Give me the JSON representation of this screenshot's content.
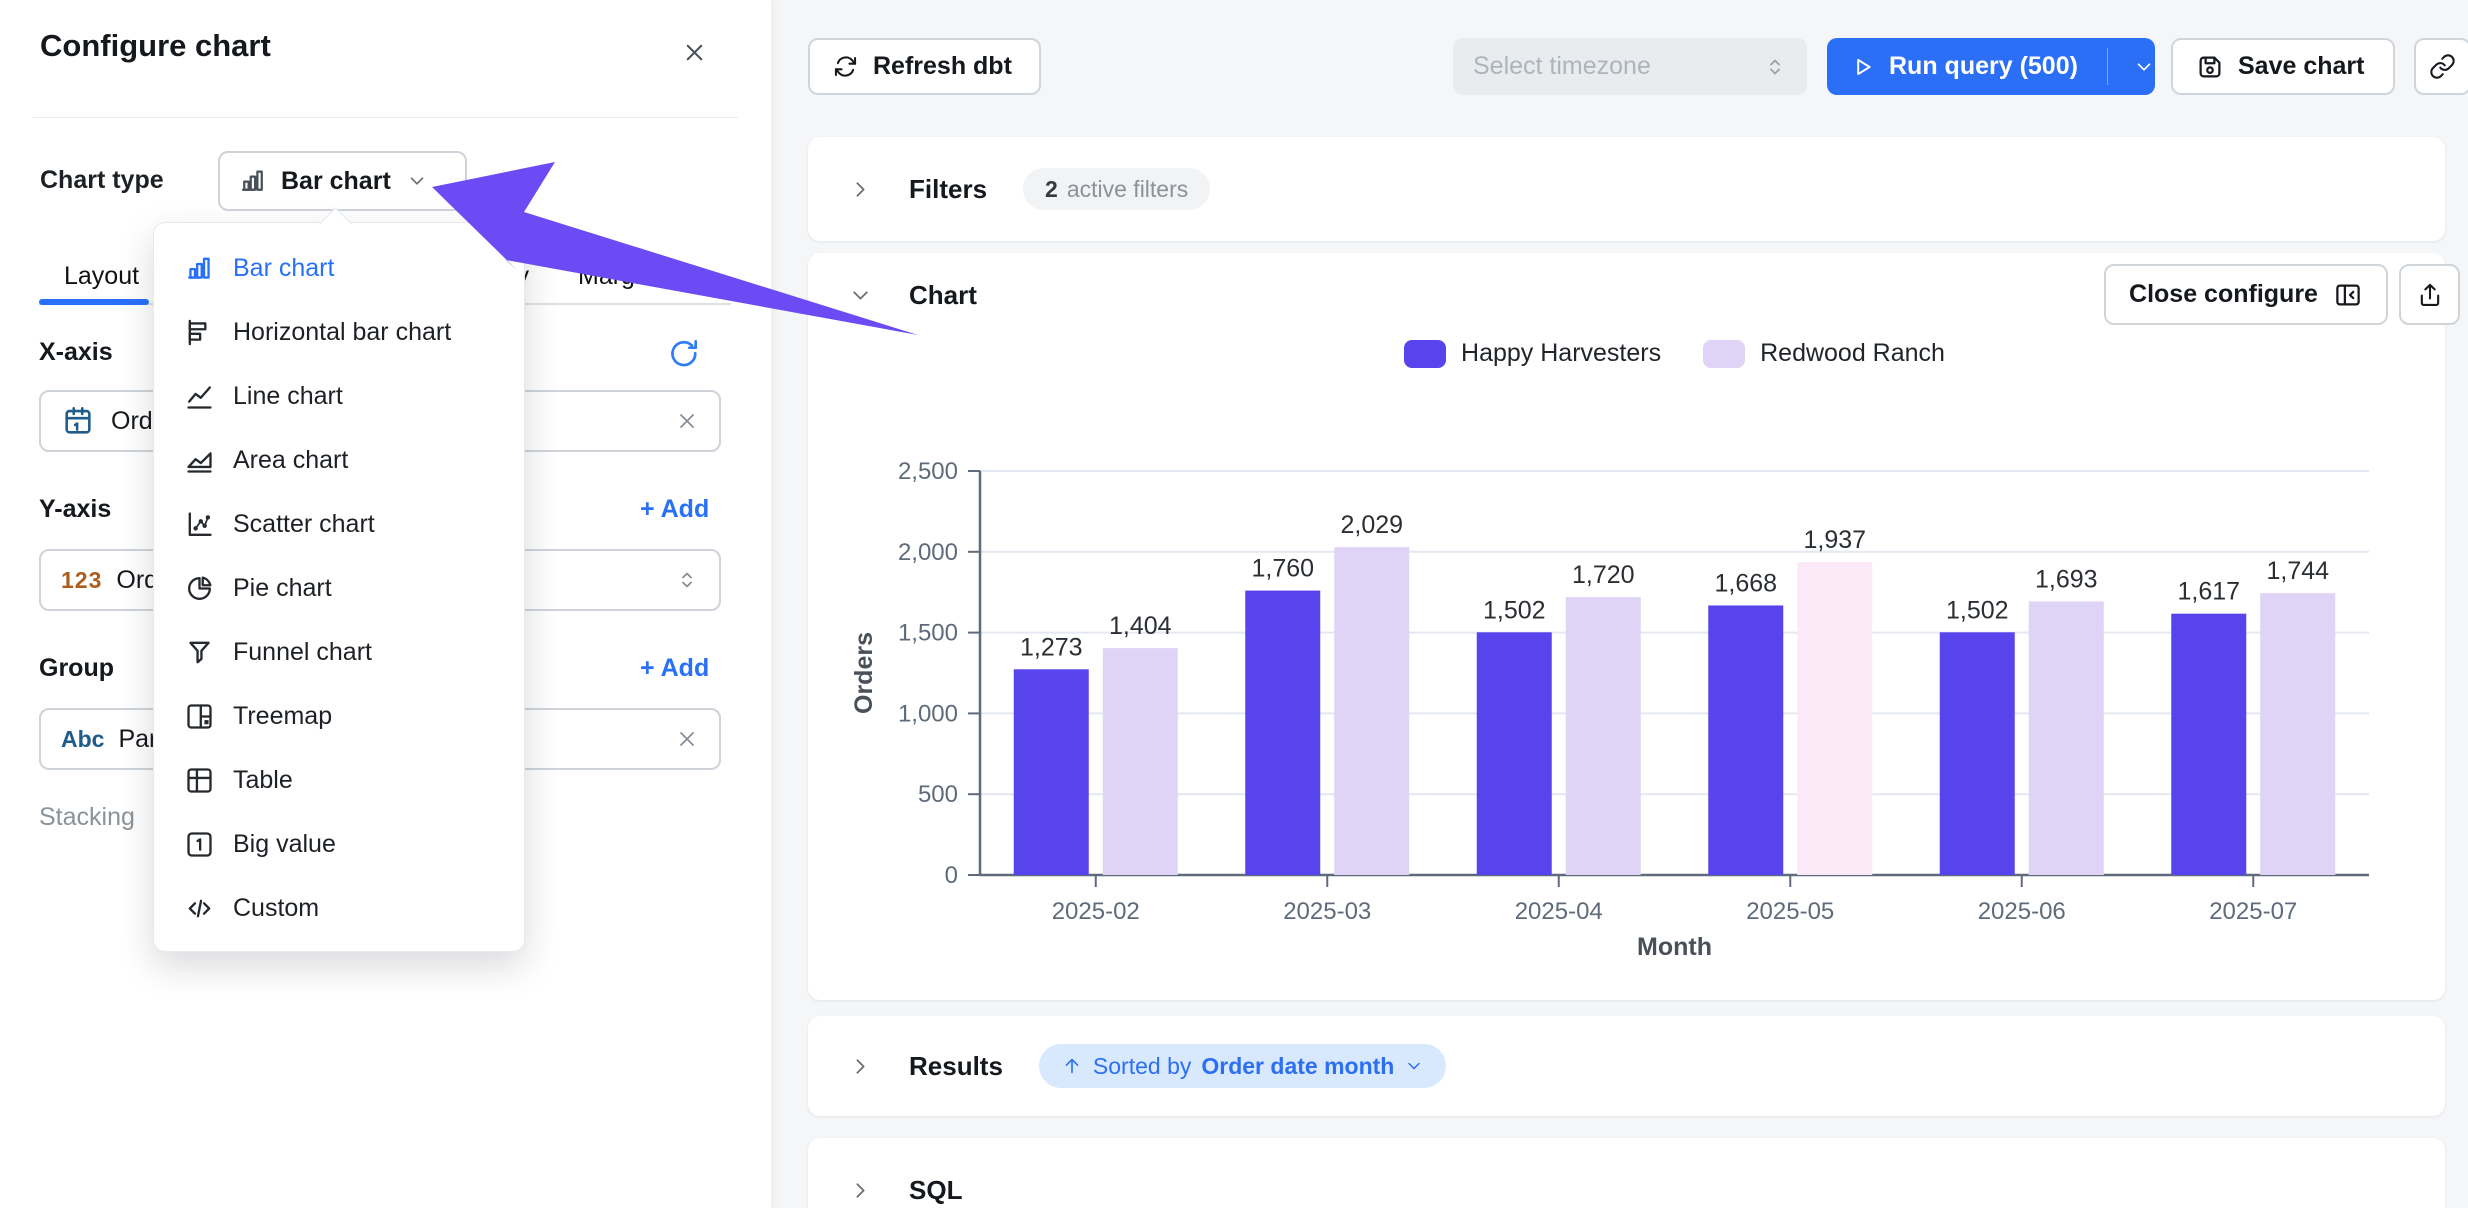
{
  "colors": {
    "accent_blue": "#2970F8",
    "series_primary": "#5844EC",
    "series_secondary": "#DFD4F6",
    "series_highlight": "#FBE9F8",
    "annotation_arrow": "#6C4BF4",
    "pill_blue_bg": "#D8E8FD"
  },
  "panel": {
    "title": "Configure chart",
    "chart_type_label": "Chart type",
    "chart_type_button": {
      "value": "Bar chart",
      "icon": "bar-chart-icon"
    },
    "tabs": [
      {
        "label": "Layout",
        "active": true
      },
      {
        "label": "Display",
        "active": false
      },
      {
        "label": "Margins",
        "active": false
      }
    ],
    "sections": {
      "x_axis": {
        "label": "X-axis",
        "field": {
          "icon": "calendar-icon",
          "value": "Orde"
        }
      },
      "y_axis": {
        "label": "Y-axis",
        "add_label": "+ Add",
        "field": {
          "icon": "number-123-icon",
          "icon_text": "123",
          "value": "Orde"
        }
      },
      "group": {
        "label": "Group",
        "add_label": "+ Add",
        "field": {
          "icon": "abc-icon",
          "icon_text": "Abc",
          "value": "Partn"
        }
      },
      "stacking_label": "Stacking"
    }
  },
  "chart_type_menu": {
    "items": [
      {
        "label": "Bar chart",
        "icon": "bar-chart",
        "selected": true
      },
      {
        "label": "Horizontal bar chart",
        "icon": "horizontal-bar-chart",
        "selected": false
      },
      {
        "label": "Line chart",
        "icon": "line-chart",
        "selected": false
      },
      {
        "label": "Area chart",
        "icon": "area-chart",
        "selected": false
      },
      {
        "label": "Scatter chart",
        "icon": "scatter-chart",
        "selected": false
      },
      {
        "label": "Pie chart",
        "icon": "pie-chart",
        "selected": false
      },
      {
        "label": "Funnel chart",
        "icon": "funnel-chart",
        "selected": false
      },
      {
        "label": "Treemap",
        "icon": "treemap",
        "selected": false
      },
      {
        "label": "Table",
        "icon": "table",
        "selected": false
      },
      {
        "label": "Big value",
        "icon": "big-value",
        "selected": false
      },
      {
        "label": "Custom",
        "icon": "custom",
        "selected": false
      }
    ]
  },
  "topbar": {
    "refresh_dbt": "Refresh dbt",
    "timezone_placeholder": "Select timezone",
    "run_query": "Run query (500)",
    "save_chart": "Save chart"
  },
  "sections": {
    "filters": {
      "title": "Filters",
      "badge_count": "2",
      "badge_text": "active filters"
    },
    "chart": {
      "title": "Chart",
      "close_configure": "Close configure"
    },
    "results": {
      "title": "Results",
      "sorted_prefix": "Sorted by",
      "sorted_field": "Order date month"
    },
    "sql": {
      "title": "SQL"
    }
  },
  "chart_data": {
    "type": "bar",
    "categories": [
      "2025-02",
      "2025-03",
      "2025-04",
      "2025-05",
      "2025-06",
      "2025-07"
    ],
    "series": [
      {
        "name": "Happy Harvesters",
        "color": "#5844EC",
        "values": [
          1273,
          1760,
          1502,
          1668,
          1502,
          1617
        ]
      },
      {
        "name": "Redwood Ranch",
        "color": "#DFD4F6",
        "values": [
          1404,
          2029,
          1720,
          1937,
          1693,
          1744
        ],
        "highlight_index": 3,
        "highlight_color": "#FBE9F8"
      }
    ],
    "xlabel": "Month",
    "ylabel": "Orders",
    "ylim": [
      0,
      2500
    ],
    "yticks": [
      0,
      500,
      1000,
      1500,
      2000,
      2500
    ],
    "grid": true,
    "legend_position": "top",
    "value_labels": true
  }
}
